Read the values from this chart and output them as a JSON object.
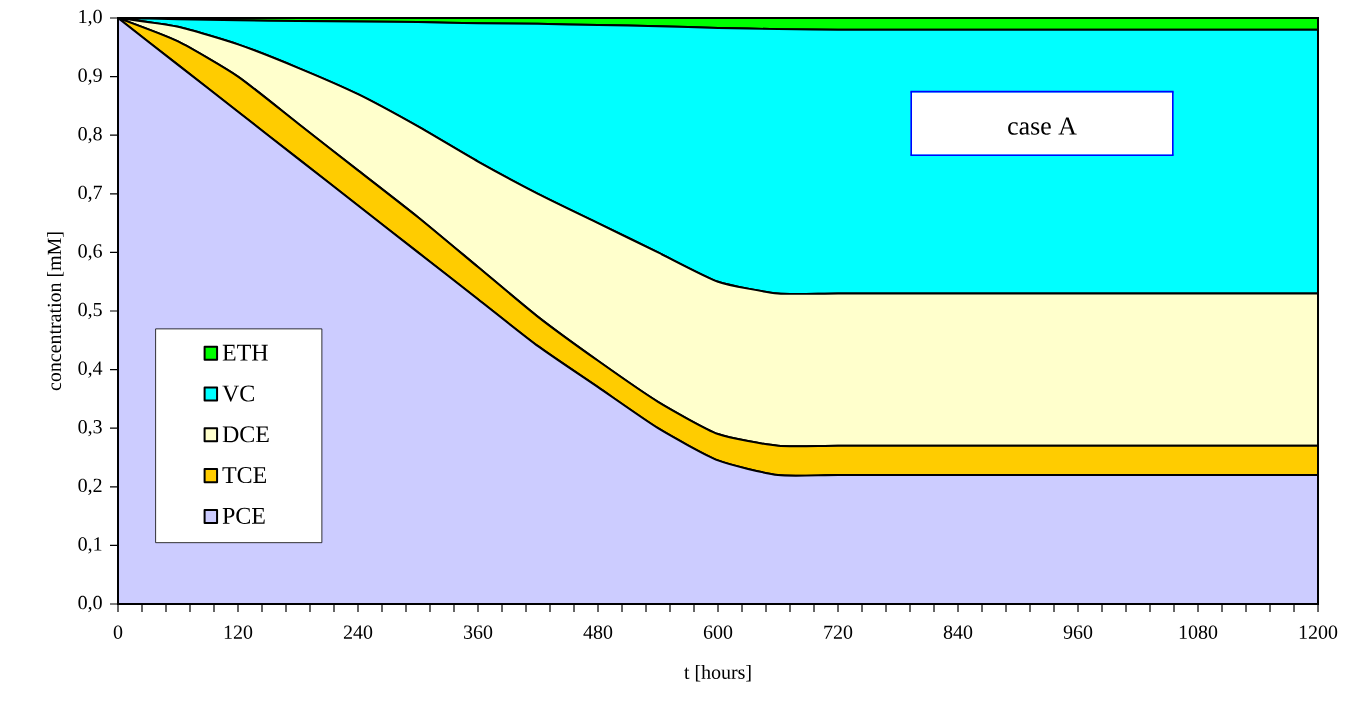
{
  "chart_data": {
    "type": "area",
    "stacked": true,
    "xlabel": "t  [hours]",
    "ylabel": "concentration [mM]",
    "annotations": [
      "case A"
    ],
    "x": [
      0,
      60,
      120,
      180,
      240,
      300,
      360,
      420,
      480,
      540,
      600,
      660,
      720,
      840,
      960,
      1080,
      1200
    ],
    "series": [
      {
        "name": "PCE",
        "color": "#ccccff",
        "values": [
          1.0,
          0.92,
          0.84,
          0.76,
          0.68,
          0.6,
          0.52,
          0.44,
          0.37,
          0.3,
          0.245,
          0.22,
          0.22,
          0.22,
          0.22,
          0.22,
          0.22
        ]
      },
      {
        "name": "TCE",
        "color": "#ffcc00",
        "values": [
          0,
          0.04,
          0.06,
          0.06,
          0.06,
          0.06,
          0.055,
          0.05,
          0.045,
          0.045,
          0.045,
          0.05,
          0.05,
          0.05,
          0.05,
          0.05,
          0.05
        ]
      },
      {
        "name": "DCE",
        "color": "#ffffcc",
        "values": [
          0,
          0.025,
          0.055,
          0.095,
          0.13,
          0.155,
          0.18,
          0.21,
          0.235,
          0.255,
          0.26,
          0.26,
          0.26,
          0.26,
          0.26,
          0.26,
          0.26
        ]
      },
      {
        "name": "VC",
        "color": "#00ffff",
        "values": [
          0,
          0.013,
          0.041,
          0.08,
          0.124,
          0.178,
          0.236,
          0.29,
          0.338,
          0.386,
          0.433,
          0.451,
          0.45,
          0.45,
          0.45,
          0.45,
          0.45
        ]
      },
      {
        "name": "ETH",
        "color": "#00ff00",
        "values": [
          0,
          0.002,
          0.004,
          0.005,
          0.006,
          0.007,
          0.009,
          0.01,
          0.012,
          0.014,
          0.017,
          0.019,
          0.02,
          0.02,
          0.02,
          0.02,
          0.02
        ]
      }
    ],
    "xlim": [
      0,
      1200
    ],
    "xticks": [
      0,
      120,
      240,
      360,
      480,
      600,
      720,
      840,
      960,
      1080,
      1200
    ],
    "ylim": [
      0,
      1.0
    ],
    "yticks": [
      {
        "value": 0,
        "label": "0,0"
      },
      {
        "value": 0.1,
        "label": "0,1"
      },
      {
        "value": 0.2,
        "label": "0,2"
      },
      {
        "value": 0.3,
        "label": "0,3"
      },
      {
        "value": 0.4,
        "label": "0,4"
      },
      {
        "value": 0.5,
        "label": "0,5"
      },
      {
        "value": 0.6,
        "label": "0,6"
      },
      {
        "value": 0.7,
        "label": "0,7"
      },
      {
        "value": 0.8,
        "label": "0,8"
      },
      {
        "value": 0.9,
        "label": "0,9"
      },
      {
        "value": 1.0,
        "label": "1,0"
      }
    ],
    "legend": "bottom left"
  }
}
